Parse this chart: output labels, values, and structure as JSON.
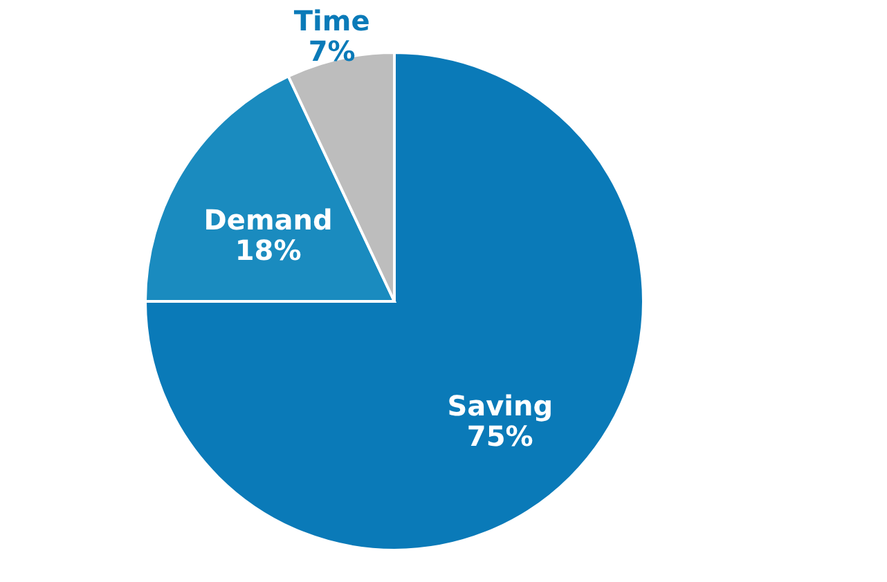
{
  "chart_data": {
    "type": "pie",
    "categories": [
      "Saving",
      "Demand",
      "Time"
    ],
    "values": [
      75,
      18,
      7
    ],
    "colors": [
      "#0a7ab8",
      "#1a8bbf",
      "#bdbdbd"
    ],
    "value_labels": [
      "75%",
      "18%",
      "7%"
    ],
    "legend": false
  }
}
